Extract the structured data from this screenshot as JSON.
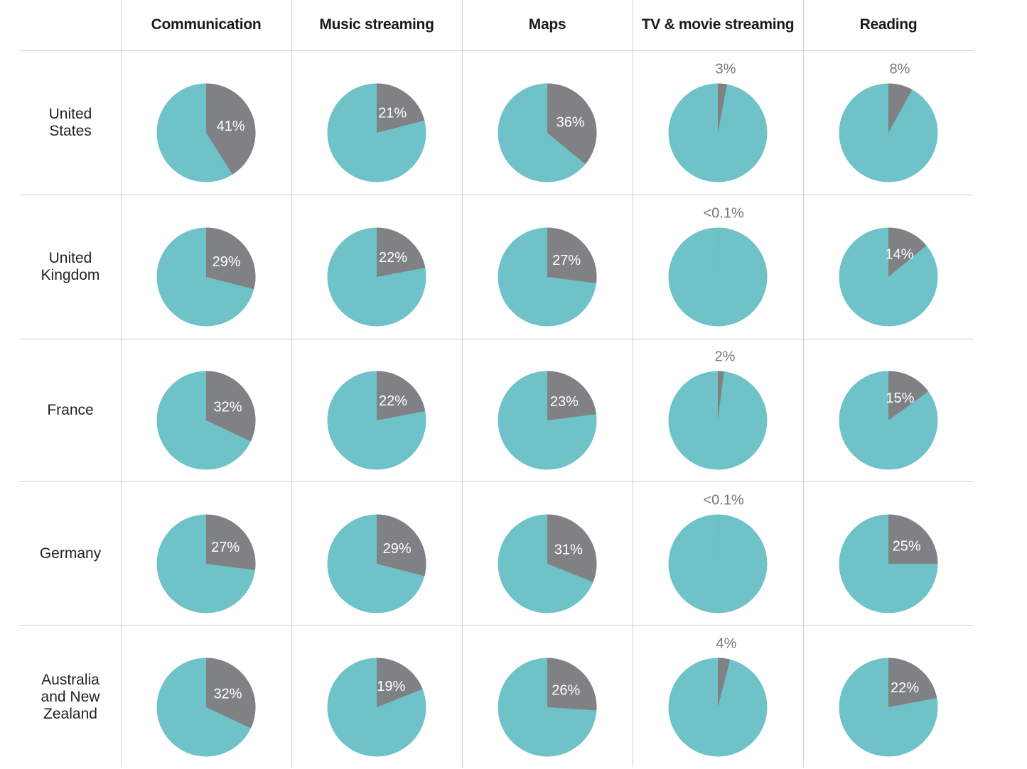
{
  "colors": {
    "share": "#808184",
    "rest": "#6fc2c7",
    "label_inside": "#ffffff",
    "label_outside": "#777777"
  },
  "chart_data": {
    "type": "pie",
    "title": "",
    "columns": [
      "Communication",
      "Music streaming",
      "Maps",
      "TV & movie streaming",
      "Reading"
    ],
    "rows": [
      "United States",
      "United Kingdom",
      "France",
      "Germany",
      "Australia and New Zealand"
    ],
    "row_labels_display": [
      "United\nStates",
      "United\nKingdom",
      "France",
      "Germany",
      "Australia\nand New\nZealand"
    ],
    "values": [
      [
        41,
        21,
        36,
        3,
        8
      ],
      [
        29,
        22,
        27,
        0.05,
        14
      ],
      [
        32,
        22,
        23,
        2,
        15
      ],
      [
        27,
        29,
        31,
        0.05,
        25
      ],
      [
        32,
        19,
        26,
        4,
        22
      ]
    ],
    "labels": [
      [
        "41%",
        "21%",
        "36%",
        "3%",
        "8%"
      ],
      [
        "29%",
        "22%",
        "27%",
        "<0.1%",
        "14%"
      ],
      [
        "32%",
        "22%",
        "23%",
        "2%",
        "15%"
      ],
      [
        "27%",
        "29%",
        "31%",
        "<0.1%",
        "25%"
      ],
      [
        "32%",
        "19%",
        "26%",
        "4%",
        "22%"
      ]
    ],
    "label_outside_threshold": 10
  }
}
